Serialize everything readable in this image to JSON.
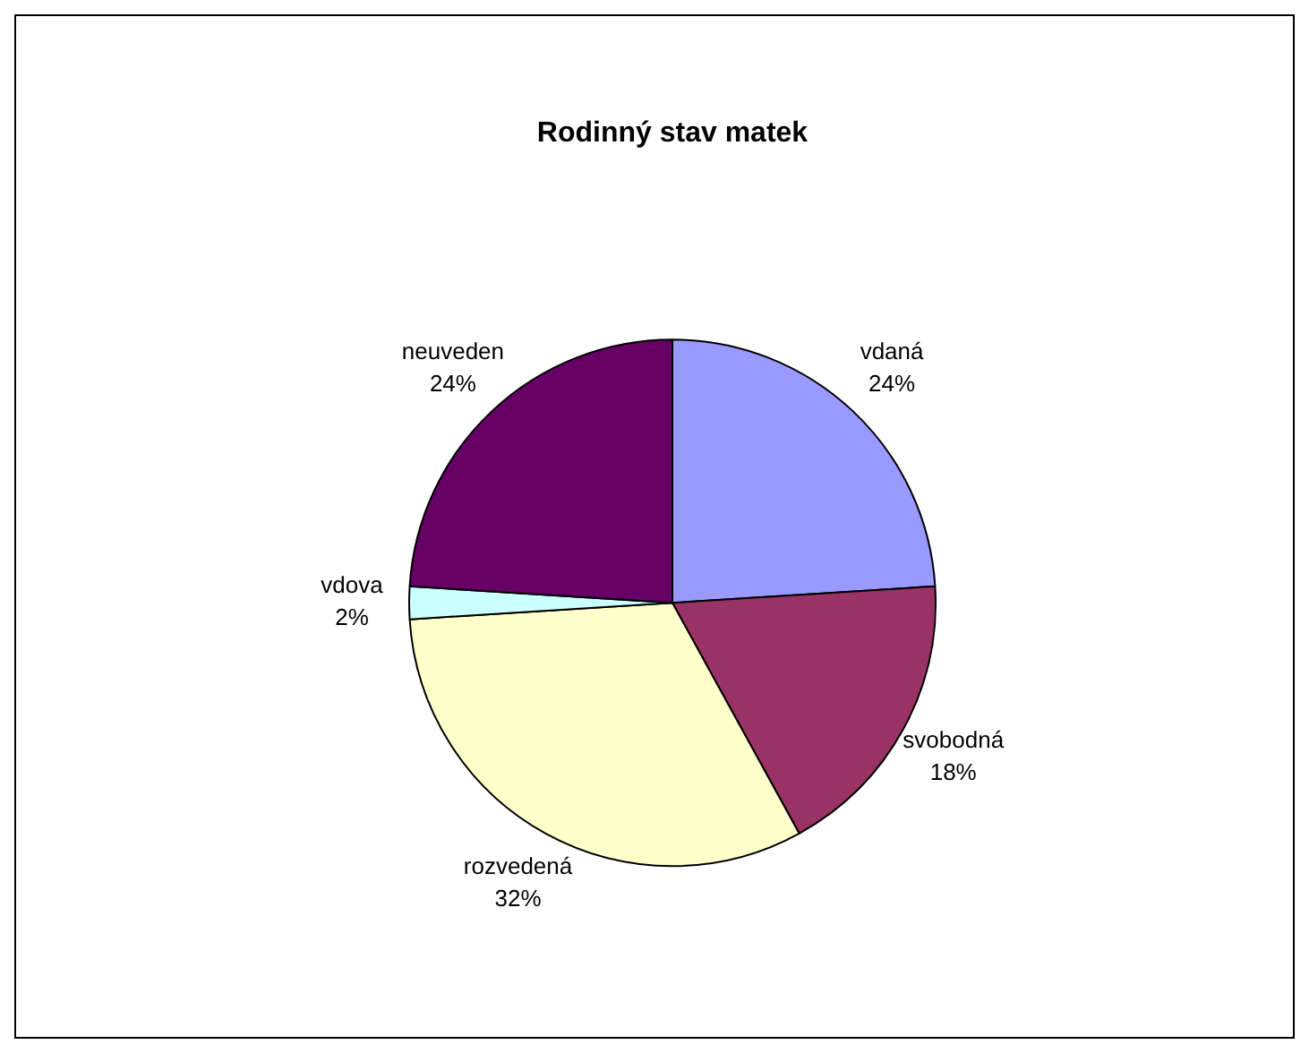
{
  "chart_data": {
    "type": "pie",
    "title": "Rodinný stav matek",
    "categories": [
      "vdaná",
      "svobodná",
      "rozvedená",
      "vdova",
      "neuveden"
    ],
    "values": [
      24,
      18,
      32,
      2,
      24
    ],
    "colors": [
      "#9999ff",
      "#993366",
      "#ffffcc",
      "#ccffff",
      "#660066"
    ],
    "value_labels": [
      "24%",
      "18%",
      "32%",
      "2%",
      "24%"
    ],
    "legend": false
  }
}
